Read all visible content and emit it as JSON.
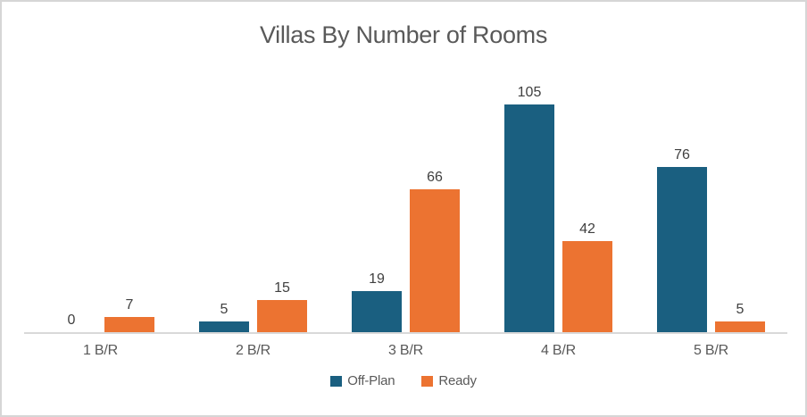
{
  "chart_data": {
    "type": "bar",
    "title": "Villas By Number of Rooms",
    "categories": [
      "1 B/R",
      "2 B/R",
      "3 B/R",
      "4 B/R",
      "5 B/R"
    ],
    "series": [
      {
        "name": "Off-Plan",
        "color": "#1A5F80",
        "values": [
          0,
          5,
          19,
          105,
          76
        ]
      },
      {
        "name": "Ready",
        "color": "#EC7331",
        "values": [
          7,
          15,
          66,
          42,
          5
        ]
      }
    ],
    "xlabel": "",
    "ylabel": "",
    "ylim": [
      0,
      120
    ],
    "grid": false,
    "legend_position": "bottom",
    "data_labels": true,
    "title_color": "#595959",
    "value_label_color": "#404040",
    "category_label_color": "#595959",
    "axis_line_color": "#D9D9D9"
  }
}
